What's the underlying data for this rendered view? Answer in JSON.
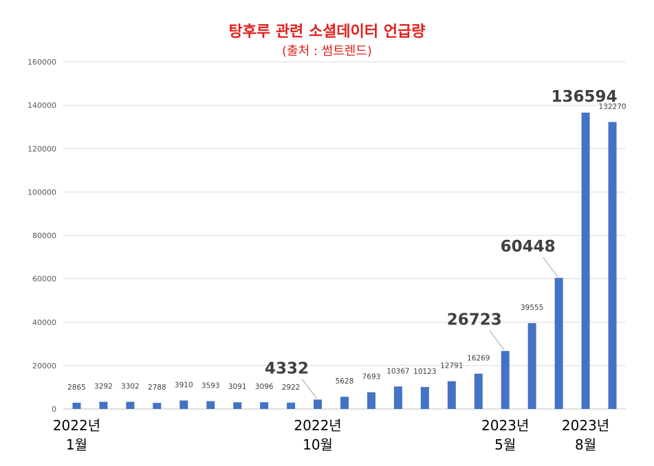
{
  "chart_data": {
    "type": "bar",
    "title": "탕후루 관련 소셜데이터 언급량",
    "subtitle": "(출처 : 썸트렌드)",
    "ylim": [
      0,
      160000
    ],
    "yticks": [
      0,
      20000,
      40000,
      60000,
      80000,
      100000,
      120000,
      140000,
      160000
    ],
    "grid": true,
    "values": [
      2865,
      3292,
      3302,
      2788,
      3910,
      3593,
      3091,
      3096,
      2922,
      4332,
      5628,
      7693,
      10367,
      10123,
      12791,
      16269,
      26723,
      39555,
      60448,
      136594,
      132270
    ],
    "highlighted_indices": [
      9,
      16,
      18,
      19
    ],
    "category_labels": [
      {
        "index": 0,
        "line1": "2022년",
        "line2": "1월"
      },
      {
        "index": 9,
        "line1": "2022년",
        "line2": "10월"
      },
      {
        "index": 16,
        "line1": "2023년",
        "line2": "5월"
      },
      {
        "index": 19,
        "line1": "2023년",
        "line2": "8월"
      }
    ],
    "bar_color": "#4472c4",
    "title_color": "#e0201b"
  }
}
